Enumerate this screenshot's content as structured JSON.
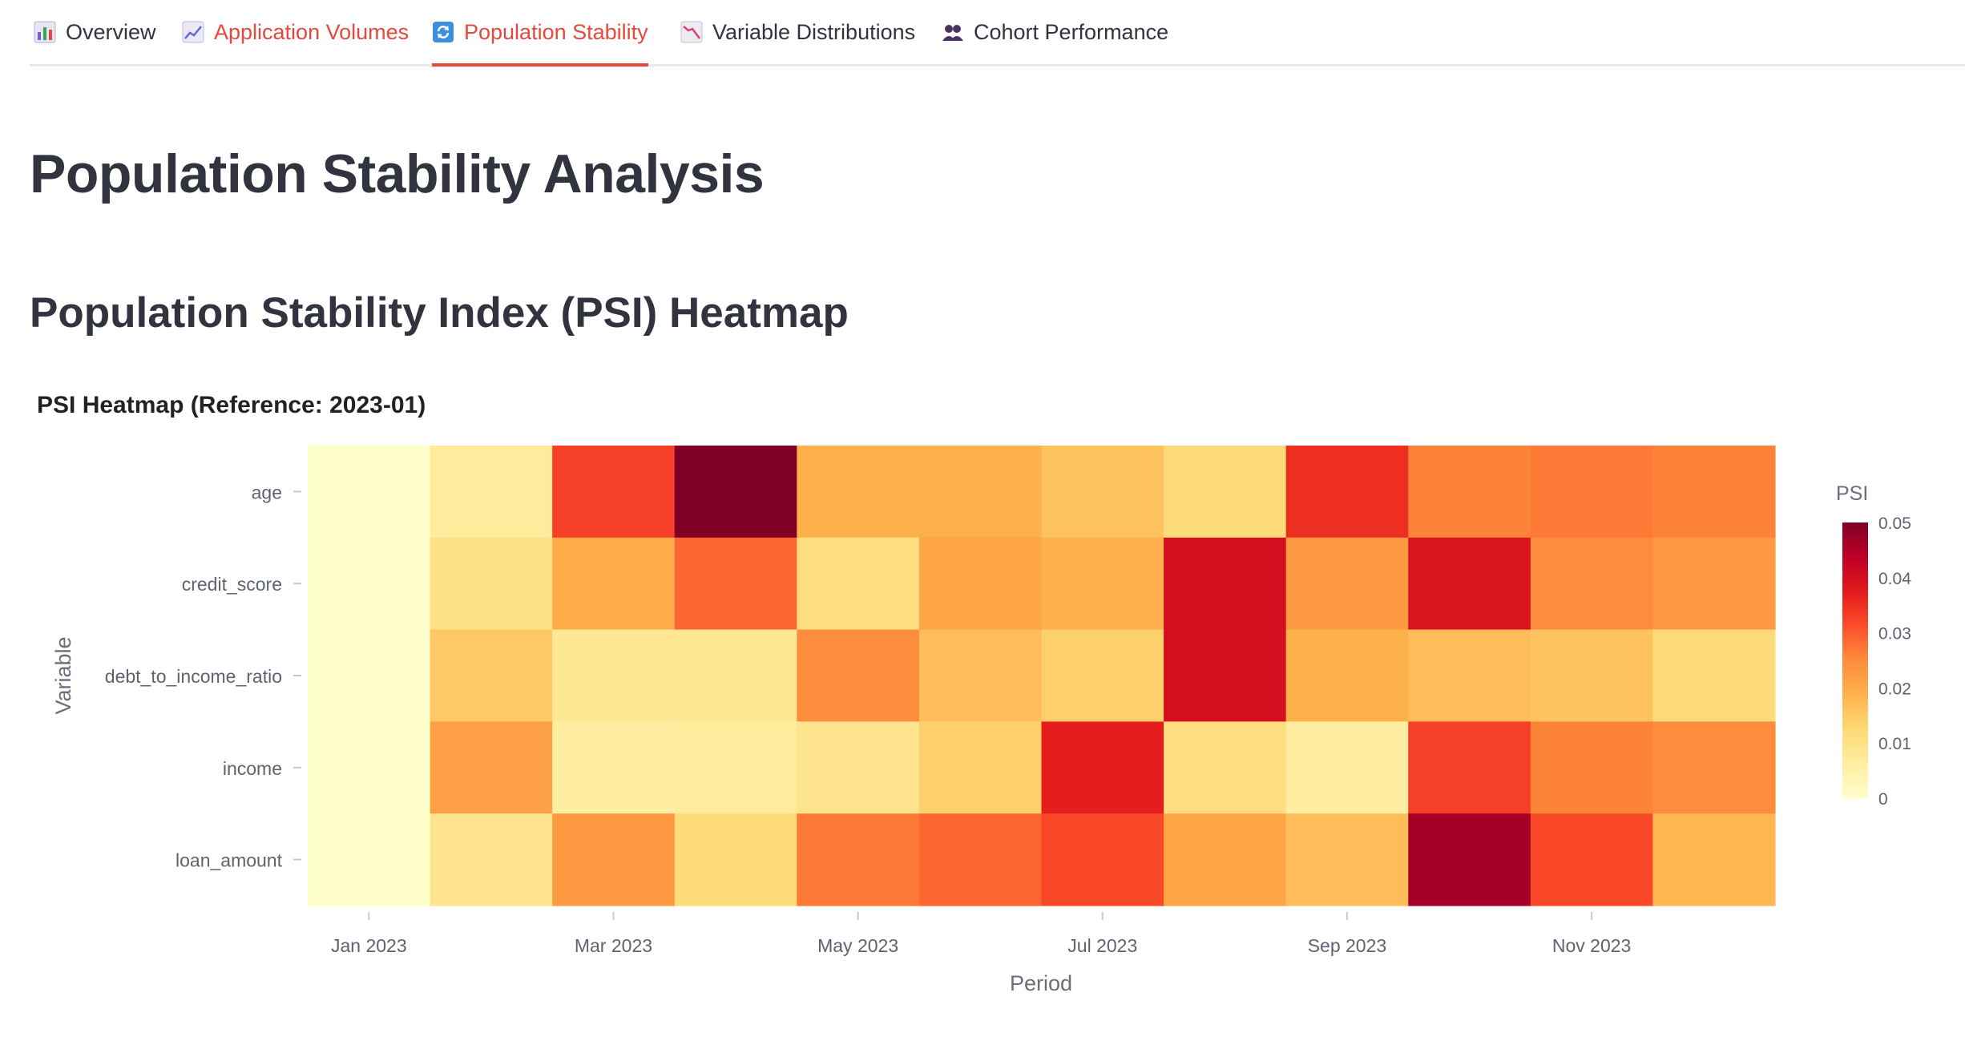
{
  "tabs": [
    {
      "label": "Overview",
      "icon": "bar-chart-icon",
      "active": false,
      "color": "#31333f"
    },
    {
      "label": "Application Volumes",
      "icon": "line-chart-icon",
      "active": false,
      "color": "#e5483c"
    },
    {
      "label": "Population Stability",
      "icon": "refresh-icon",
      "active": true,
      "color": "#e5483c"
    },
    {
      "label": "Variable Distributions",
      "icon": "trend-down-icon",
      "active": false,
      "color": "#31333f"
    },
    {
      "label": "Cohort Performance",
      "icon": "users-icon",
      "active": false,
      "color": "#31333f"
    }
  ],
  "page": {
    "title": "Population Stability Analysis",
    "section_title": "Population Stability Index (PSI) Heatmap"
  },
  "chart_data": {
    "type": "heatmap",
    "title": "PSI Heatmap (Reference: 2023-01)",
    "xlabel": "Period",
    "ylabel": "Variable",
    "x": [
      "2023-01",
      "2023-02",
      "2023-03",
      "2023-04",
      "2023-05",
      "2023-06",
      "2023-07",
      "2023-08",
      "2023-09",
      "2023-10",
      "2023-11",
      "2023-12"
    ],
    "x_tick_labels": [
      "Jan 2023",
      "Mar 2023",
      "May 2023",
      "Jul 2023",
      "Sep 2023",
      "Nov 2023"
    ],
    "y": [
      "age",
      "credit_score",
      "debt_to_income_ratio",
      "income",
      "loan_amount"
    ],
    "z": [
      [
        0.0,
        0.007,
        0.033,
        0.05,
        0.019,
        0.019,
        0.016,
        0.012,
        0.035,
        0.026,
        0.027,
        0.026
      ],
      [
        0.0,
        0.01,
        0.02,
        0.029,
        0.011,
        0.021,
        0.019,
        0.04,
        0.023,
        0.039,
        0.025,
        0.023
      ],
      [
        0.0,
        0.015,
        0.008,
        0.008,
        0.025,
        0.017,
        0.014,
        0.04,
        0.019,
        0.017,
        0.016,
        0.012
      ],
      [
        0.0,
        0.022,
        0.006,
        0.007,
        0.009,
        0.014,
        0.037,
        0.011,
        0.006,
        0.033,
        0.026,
        0.025
      ],
      [
        0.0,
        0.009,
        0.023,
        0.012,
        0.027,
        0.029,
        0.032,
        0.021,
        0.017,
        0.046,
        0.032,
        0.018
      ]
    ],
    "colorbar": {
      "title": "PSI",
      "range": [
        0,
        0.05
      ],
      "ticks": [
        "0",
        "0.01",
        "0.02",
        "0.03",
        "0.04",
        "0.05"
      ]
    },
    "colorscale": [
      "#ffffcc",
      "#ffeda0",
      "#fed976",
      "#feb24c",
      "#fd8d3c",
      "#fc4e2a",
      "#e31a1c",
      "#bd0026",
      "#800026"
    ]
  }
}
